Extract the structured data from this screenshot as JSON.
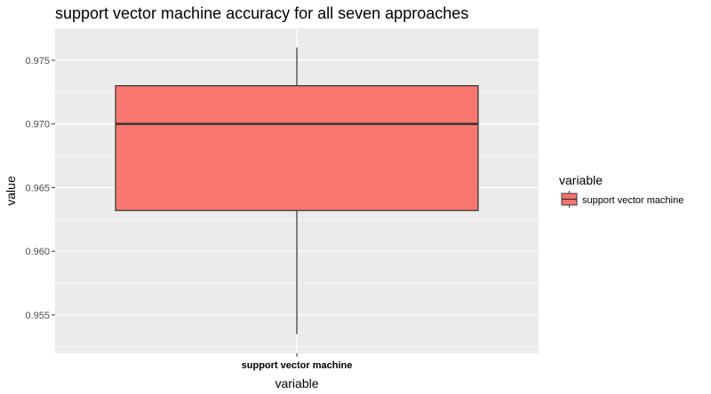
{
  "chart_data": {
    "type": "boxplot",
    "title": "support vector machine accuracy for all seven approaches",
    "xlabel": "variable",
    "ylabel": "value",
    "categories": [
      "support vector machine"
    ],
    "series": [
      {
        "name": "support vector machine",
        "min": 0.9535,
        "q1": 0.9632,
        "median": 0.97,
        "q3": 0.973,
        "max": 0.976
      }
    ],
    "ylim": [
      0.952,
      0.9775
    ],
    "yticks": [
      0.955,
      0.96,
      0.965,
      0.97,
      0.975
    ],
    "ytick_labels": [
      "0.955",
      "0.960",
      "0.965",
      "0.970",
      "0.975"
    ],
    "grid": true,
    "legend": {
      "title": "variable",
      "placement": "right",
      "entries": [
        "support vector machine"
      ]
    },
    "colors": {
      "fill": "#F8766D",
      "stroke": "#333333",
      "panel": "#EBEBEB",
      "grid": "#FFFFFF"
    }
  }
}
